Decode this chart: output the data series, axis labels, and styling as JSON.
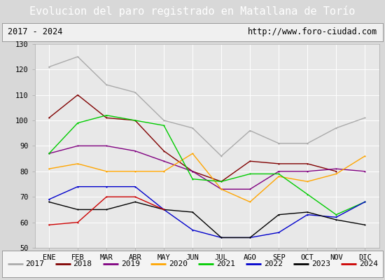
{
  "title": "Evolucion del paro registrado en Matallana de Torío",
  "subtitle_left": "2017 - 2024",
  "subtitle_right": "http://www.foro-ciudad.com",
  "months": [
    "ENE",
    "FEB",
    "MAR",
    "ABR",
    "MAY",
    "JUN",
    "JUL",
    "AGO",
    "SEP",
    "OCT",
    "NOV",
    "DIC"
  ],
  "ylim": [
    50,
    130
  ],
  "yticks": [
    50,
    60,
    70,
    80,
    90,
    100,
    110,
    120,
    130
  ],
  "series": {
    "2017": {
      "color": "#aaaaaa",
      "values": [
        121,
        125,
        114,
        111,
        100,
        97,
        86,
        96,
        91,
        91,
        97,
        101
      ]
    },
    "2018": {
      "color": "#800000",
      "values": [
        101,
        110,
        101,
        100,
        88,
        80,
        76,
        84,
        83,
        83,
        80,
        null
      ]
    },
    "2019": {
      "color": "#800080",
      "values": [
        87,
        90,
        90,
        88,
        84,
        80,
        73,
        73,
        80,
        80,
        81,
        80
      ]
    },
    "2020": {
      "color": "#ffa500",
      "values": [
        81,
        83,
        80,
        80,
        80,
        87,
        73,
        68,
        78,
        76,
        79,
        86
      ]
    },
    "2021": {
      "color": "#00cc00",
      "values": [
        87,
        99,
        102,
        100,
        98,
        77,
        76,
        79,
        79,
        71,
        63,
        68
      ]
    },
    "2022": {
      "color": "#0000cc",
      "values": [
        69,
        74,
        74,
        74,
        65,
        57,
        54,
        54,
        56,
        63,
        62,
        68
      ]
    },
    "2023": {
      "color": "#000000",
      "values": [
        68,
        65,
        65,
        68,
        65,
        64,
        54,
        54,
        63,
        64,
        61,
        59
      ]
    },
    "2024": {
      "color": "#cc0000",
      "values": [
        59,
        60,
        70,
        70,
        65,
        null,
        null,
        null,
        null,
        null,
        null,
        null
      ]
    }
  },
  "fig_bg_color": "#d8d8d8",
  "plot_bg_color": "#e8e8e8",
  "title_bg_color": "#4c6fbe",
  "title_text_color": "#ffffff",
  "subtitle_bg_color": "#f0f0f0",
  "legend_bg_color": "#f4f4f4",
  "grid_color": "#ffffff",
  "title_fontsize": 11,
  "subtitle_fontsize": 8.5,
  "tick_fontsize": 7.5,
  "legend_fontsize": 8
}
